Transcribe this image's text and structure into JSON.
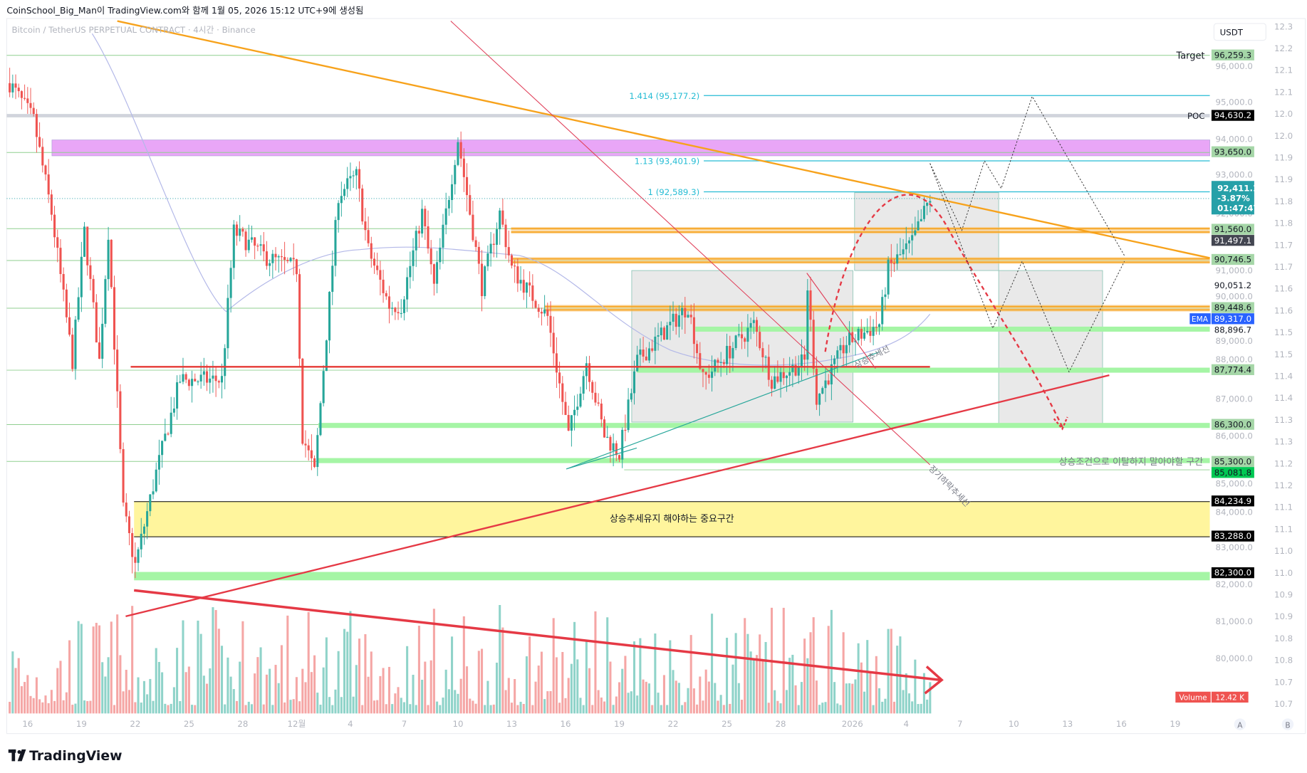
{
  "header": {
    "caption": "CoinSchool_Big_Man이 TradingView.com와 함께 1월 05, 2026 15:12 UTC+9에 생성됨",
    "symbol_legend": "Bitcoin / TetherUS PERPETUAL CONTRACT · 4시간 · Binance"
  },
  "footer": {
    "logo_text": "TradingView"
  },
  "right_axis": {
    "currency_button": "USDT",
    "price_ticks": [
      "96,000.0",
      "95,000.0",
      "94,000.0",
      "93,000.0",
      "92,000.0",
      "91,000.0",
      "90,000.0",
      "89,000.0",
      "88,000.0",
      "87,000.0",
      "86,000.0",
      "85,000.0",
      "84,000.0",
      "83,000.0",
      "82,000.0",
      "81,000.0",
      "80,000.0"
    ],
    "secondary_ticks": [
      "12.3",
      "12.2",
      "12.1",
      "12.1",
      "12.0",
      "12.0",
      "11.9",
      "11.9",
      "11.8",
      "11.8",
      "11.7",
      "11.7",
      "11.6",
      "11.6",
      "11.5",
      "11.5",
      "11.4",
      "11.4",
      "11.3",
      "11.3",
      "11.2",
      "11.2",
      "11.1",
      "11.1",
      "11.0",
      "11.0",
      "10.9",
      "10.9",
      "10.8",
      "10.8",
      "10.7",
      "10.7"
    ],
    "auto_button": "A",
    "log_button": "B",
    "labels": [
      {
        "text": "96,259.3",
        "price": 96259.3,
        "bg": "#a5d6a7",
        "fg": "#131722"
      },
      {
        "text": "94,630.2",
        "price": 94630.2,
        "bg": "#000000",
        "fg": "#ffffff"
      },
      {
        "text": "93,650.0",
        "price": 93650.0,
        "bg": "#a5d6a7",
        "fg": "#131722"
      },
      {
        "text": "91,560.0",
        "price": 91560.0,
        "bg": "#a5d6a7",
        "fg": "#131722"
      },
      {
        "text": "91,497.1",
        "price": 91497.1,
        "bg": "#434651",
        "fg": "#ffffff"
      },
      {
        "text": "90,746.5",
        "price": 90746.5,
        "bg": "#a5d6a7",
        "fg": "#131722"
      },
      {
        "text": "90,051.2",
        "price": 90051.2,
        "bg": "transparent",
        "fg": "#131722"
      },
      {
        "text": "89,448.6",
        "price": 89448.6,
        "bg": "#a5d6a7",
        "fg": "#131722"
      },
      {
        "text": "89,317.0",
        "price": 89317.0,
        "bg": "#2962ff",
        "fg": "#ffffff"
      },
      {
        "text": "88,896.7",
        "price": 88896.7,
        "bg": "transparent",
        "fg": "#131722"
      },
      {
        "text": "87,774.4",
        "price": 87774.4,
        "bg": "#a5d6a7",
        "fg": "#131722"
      },
      {
        "text": "86,300.0",
        "price": 86300.0,
        "bg": "#a5d6a7",
        "fg": "#131722"
      },
      {
        "text": "85,300.0",
        "price": 85300.0,
        "bg": "#a5d6a7",
        "fg": "#131722"
      },
      {
        "text": "85,081.8",
        "price": 85081.8,
        "bg": "#00c853",
        "fg": "#131722"
      },
      {
        "text": "84,234.9",
        "price": 84234.9,
        "bg": "#000000",
        "fg": "#ffffff"
      },
      {
        "text": "83,288.0",
        "price": 83288.0,
        "bg": "#000000",
        "fg": "#ffffff"
      },
      {
        "text": "82,300.0",
        "price": 82300.0,
        "bg": "#000000",
        "fg": "#ffffff"
      }
    ],
    "last_price": {
      "price": "92,411.1",
      "change": "-3.87%",
      "countdown": "01:47:47",
      "bg": "#26a0a8"
    },
    "ema_tag": "EMA",
    "volume_tag": "Volume",
    "volume_value": "12.42 K"
  },
  "annotations": {
    "target": "Target",
    "poc": "POC",
    "fib_1414": "1.414 (95,177.2)",
    "fib_113": "1.13 (93,401.9)",
    "fib_1": "1 (92,589.3)",
    "support_zone_note": "상승조건으로 이탈하지 말아야할 구간",
    "key_zone_note": "상승추세유지 해야하는 중요구간",
    "uptrend_line": "상승추세선",
    "long_downtrend_line": "장기하락추세선"
  },
  "chart_data": {
    "type": "candlestick",
    "symbol": "Bitcoin / TetherUS PERPETUAL CONTRACT",
    "timeframe": "4시간",
    "exchange": "Binance",
    "ylim": [
      79800,
      97300
    ],
    "x_ticks": [
      "16",
      "19",
      "22",
      "25",
      "28",
      "12월",
      "4",
      "7",
      "10",
      "13",
      "16",
      "19",
      "22",
      "25",
      "28",
      "2026",
      "4",
      "7",
      "10",
      "13",
      "16",
      "19"
    ],
    "x_tick_dates": [
      "2025-11-16",
      "2025-11-19",
      "2025-11-22",
      "2025-11-25",
      "2025-11-28",
      "2025-12-01",
      "2025-12-04",
      "2025-12-07",
      "2025-12-10",
      "2025-12-13",
      "2025-12-16",
      "2025-12-19",
      "2025-12-22",
      "2025-12-25",
      "2025-12-28",
      "2026-01-01",
      "2026-01-04",
      "2026-01-07",
      "2026-01-10",
      "2026-01-13",
      "2026-01-16",
      "2026-01-19"
    ],
    "price_path": [
      [
        "2025-11-15T00:00",
        95500
      ],
      [
        "2025-11-16T08:00",
        94500
      ],
      [
        "2025-11-17T08:00",
        92000
      ],
      [
        "2025-11-18T12:00",
        88000
      ],
      [
        "2025-11-19T04:00",
        91500
      ],
      [
        "2025-11-20T00:00",
        88000
      ],
      [
        "2025-11-20T12:00",
        91500
      ],
      [
        "2025-11-21T08:00",
        84000
      ],
      [
        "2025-11-22T00:00",
        82500
      ],
      [
        "2025-11-23T04:00",
        85000
      ],
      [
        "2025-11-24T12:00",
        87500
      ],
      [
        "2025-11-26T20:00",
        87500
      ],
      [
        "2025-11-27T12:00",
        91500
      ],
      [
        "2025-11-29T08:00",
        90800
      ],
      [
        "2025-12-01T00:00",
        90500
      ],
      [
        "2025-12-01T08:00",
        86000
      ],
      [
        "2025-12-02T00:00",
        85000
      ],
      [
        "2025-12-03T08:00",
        92500
      ],
      [
        "2025-12-04T08:00",
        93000
      ],
      [
        "2025-12-05T00:00",
        91000
      ],
      [
        "2025-12-06T04:00",
        89500
      ],
      [
        "2025-12-06T20:00",
        89500
      ],
      [
        "2025-12-08T00:00",
        92000
      ],
      [
        "2025-12-08T16:00",
        90000
      ],
      [
        "2025-12-10T00:00",
        94000
      ],
      [
        "2025-12-11T08:00",
        90000
      ],
      [
        "2025-12-12T08:00",
        92000
      ],
      [
        "2025-12-13T00:00",
        90500
      ],
      [
        "2025-12-15T00:00",
        89200
      ],
      [
        "2025-12-16T04:00",
        86000
      ],
      [
        "2025-12-17T04:00",
        88000
      ],
      [
        "2025-12-18T04:00",
        86000
      ],
      [
        "2025-12-19T00:00",
        85500
      ],
      [
        "2025-12-20T00:00",
        88000
      ],
      [
        "2025-12-22T20:00",
        89500
      ],
      [
        "2025-12-23T16:00",
        87500
      ],
      [
        "2025-12-26T12:00",
        89000
      ],
      [
        "2025-12-27T12:00",
        87500
      ],
      [
        "2025-12-29T08:00",
        88000
      ],
      [
        "2025-12-29T12:00",
        90000
      ],
      [
        "2025-12-30T00:00",
        87000
      ],
      [
        "2025-12-31T16:00",
        88500
      ],
      [
        "2026-01-02T12:00",
        89000
      ],
      [
        "2026-01-03T00:00",
        90500
      ],
      [
        "2026-01-04T08:00",
        91200
      ],
      [
        "2026-01-05T08:00",
        92411.1
      ]
    ],
    "horizontal_levels": [
      96259.3,
      93650.0,
      91560.0,
      90746.5,
      89448.6,
      87774.4,
      86300.0,
      85300.0,
      82300.0
    ],
    "poc": 94630.2,
    "fib_levels": [
      {
        "ratio": 1.414,
        "price": 95177.2
      },
      {
        "ratio": 1.13,
        "price": 93401.9
      },
      {
        "ratio": 1,
        "price": 92589.3
      }
    ],
    "key_zone": [
      83288.0,
      84234.9
    ],
    "colors": {
      "up": "#26a69a",
      "down": "#ef5350",
      "volume_up": "#8fd3c9",
      "volume_down": "#f5a6a5",
      "trend_orange": "#f7a21b",
      "zone_pink": "#e9a6f7",
      "zone_yellow": "#fff59d",
      "level_green": "#a5f5a5",
      "fib_cyan": "#26bcd4"
    }
  }
}
